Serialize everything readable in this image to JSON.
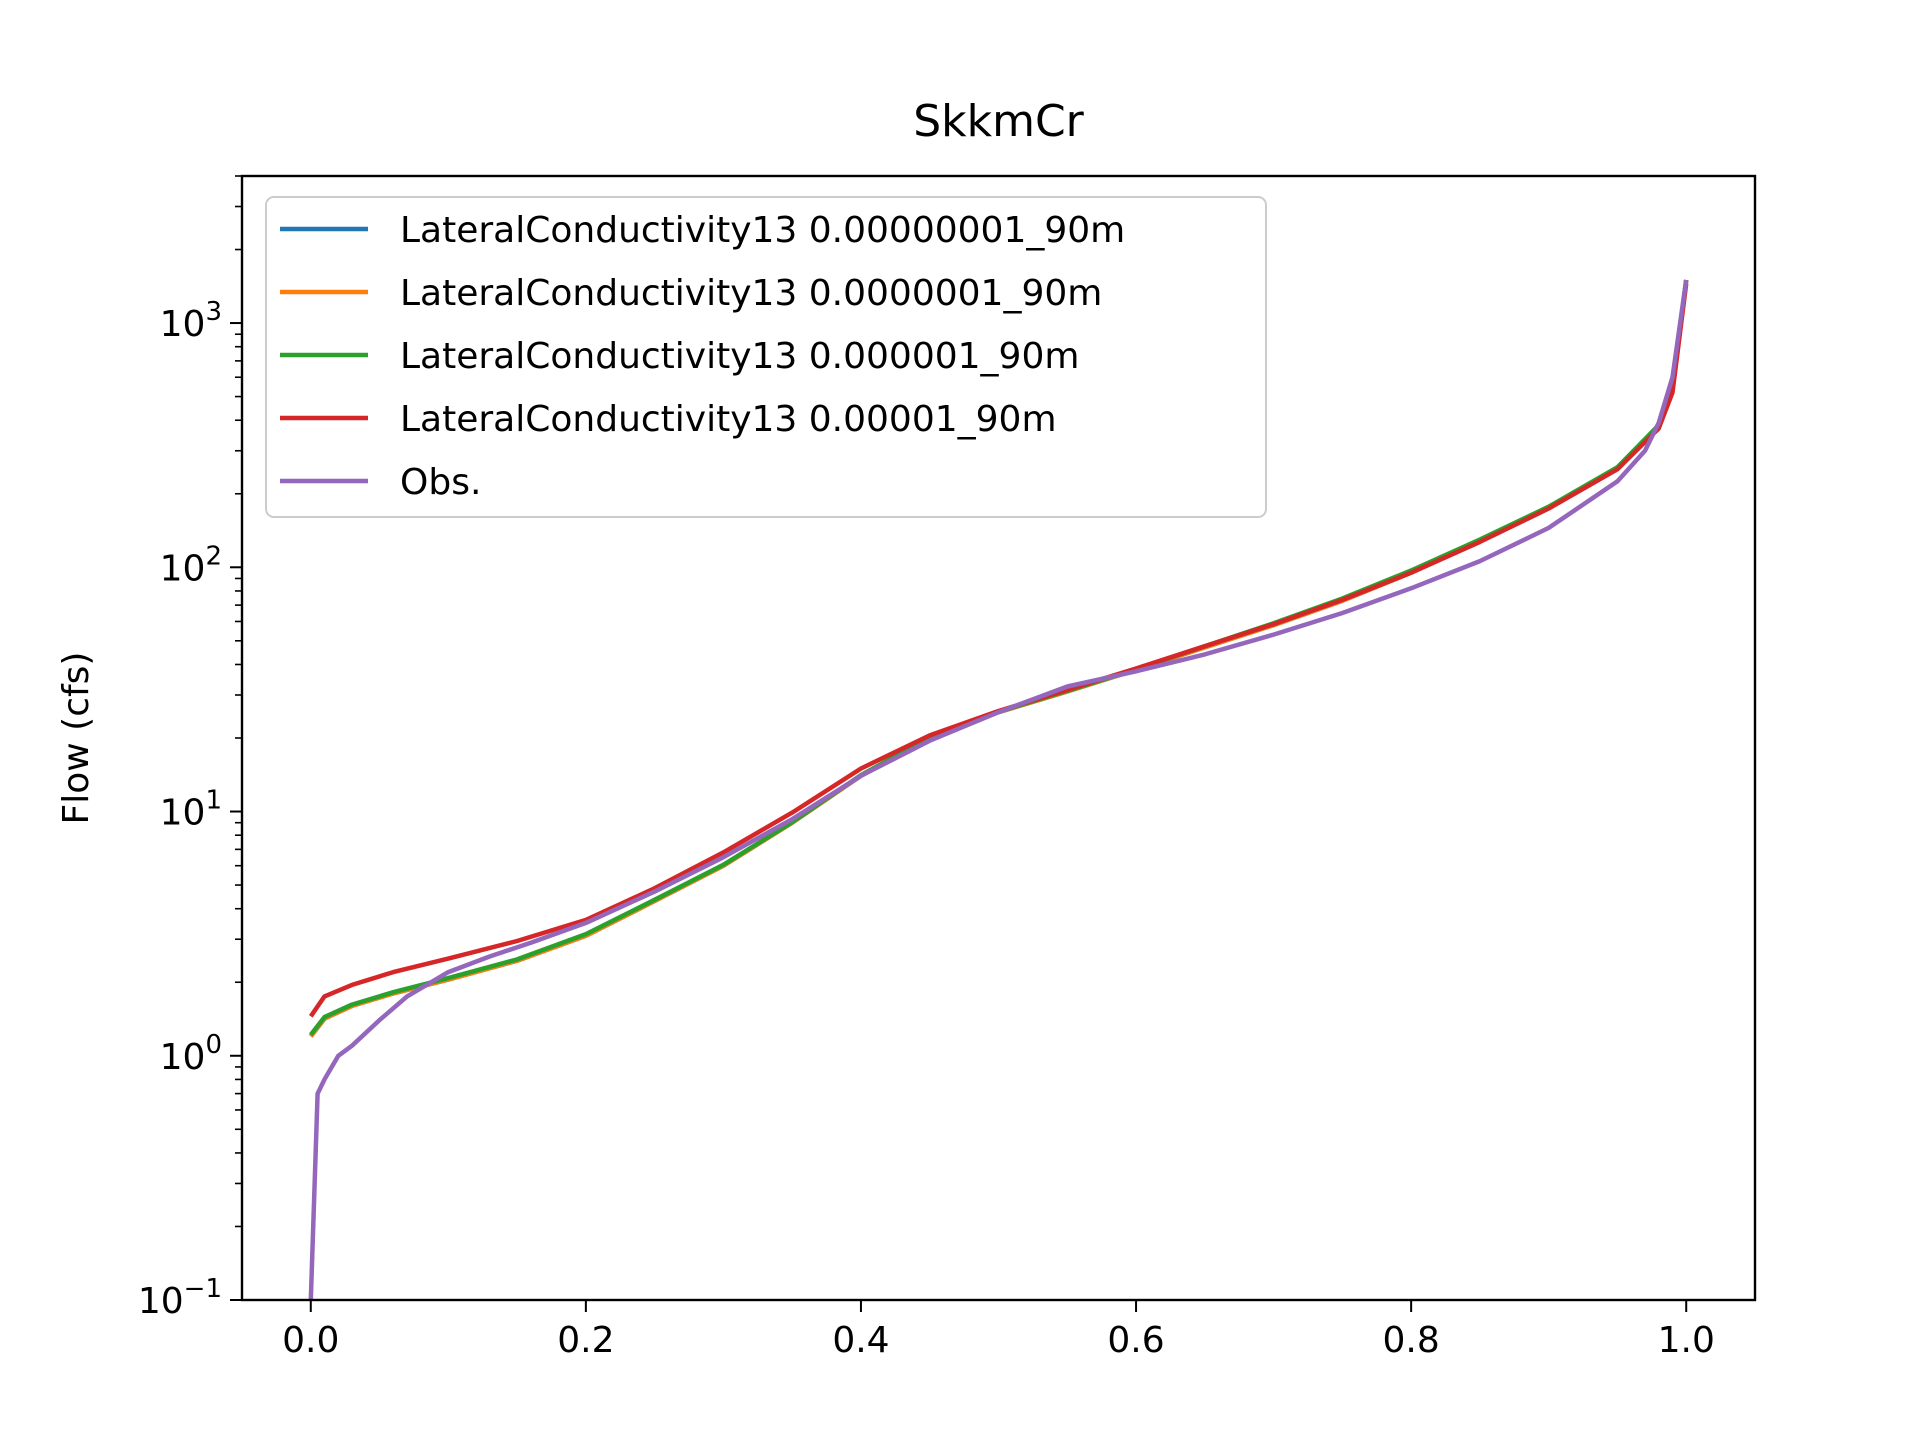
{
  "chart_data": {
    "type": "line",
    "title": "SkkmCr",
    "xlabel": "",
    "ylabel": "Flow (cfs)",
    "yscale": "log",
    "xlim": [
      -0.05,
      1.05
    ],
    "ylim": [
      0.1,
      4000
    ],
    "x_ticks": [
      0.0,
      0.2,
      0.4,
      0.6,
      0.8,
      1.0
    ],
    "x_tick_labels": [
      "0.0",
      "0.2",
      "0.4",
      "0.6",
      "0.8",
      "1.0"
    ],
    "y_ticks": [
      0.1,
      1,
      10,
      100,
      1000
    ],
    "y_tick_labels": [
      {
        "base": "10",
        "exp": "−1"
      },
      {
        "base": "10",
        "exp": "0"
      },
      {
        "base": "10",
        "exp": "1"
      },
      {
        "base": "10",
        "exp": "2"
      },
      {
        "base": "10",
        "exp": "3"
      }
    ],
    "grid": false,
    "legend_position": "upper-left",
    "series": [
      {
        "name": "LateralConductivity13 0.00000001_90m",
        "color": "#1f77b4",
        "points": [
          [
            0.0,
            1.2
          ],
          [
            0.01,
            1.42
          ],
          [
            0.03,
            1.6
          ],
          [
            0.06,
            1.8
          ],
          [
            0.1,
            2.05
          ],
          [
            0.15,
            2.45
          ],
          [
            0.2,
            3.1
          ],
          [
            0.25,
            4.3
          ],
          [
            0.3,
            6.0
          ],
          [
            0.35,
            9.0
          ],
          [
            0.4,
            14.0
          ],
          [
            0.45,
            20.0
          ],
          [
            0.5,
            25.5
          ],
          [
            0.55,
            31.0
          ],
          [
            0.6,
            38.0
          ],
          [
            0.65,
            47.0
          ],
          [
            0.7,
            58.0
          ],
          [
            0.75,
            73.0
          ],
          [
            0.8,
            95.0
          ],
          [
            0.85,
            128.0
          ],
          [
            0.9,
            175.0
          ],
          [
            0.95,
            255.0
          ],
          [
            0.98,
            380.0
          ],
          [
            0.99,
            540.0
          ],
          [
            1.0,
            1500.0
          ]
        ]
      },
      {
        "name": "LateralConductivity13 0.0000001_90m",
        "color": "#ff7f0e",
        "points": [
          [
            0.0,
            1.2
          ],
          [
            0.01,
            1.42
          ],
          [
            0.03,
            1.6
          ],
          [
            0.06,
            1.8
          ],
          [
            0.1,
            2.05
          ],
          [
            0.15,
            2.45
          ],
          [
            0.2,
            3.1
          ],
          [
            0.25,
            4.3
          ],
          [
            0.3,
            6.0
          ],
          [
            0.35,
            9.0
          ],
          [
            0.4,
            14.0
          ],
          [
            0.45,
            20.0
          ],
          [
            0.5,
            25.5
          ],
          [
            0.55,
            31.0
          ],
          [
            0.6,
            38.0
          ],
          [
            0.65,
            47.0
          ],
          [
            0.7,
            58.0
          ],
          [
            0.75,
            73.0
          ],
          [
            0.8,
            95.0
          ],
          [
            0.85,
            128.0
          ],
          [
            0.9,
            175.0
          ],
          [
            0.95,
            255.0
          ],
          [
            0.98,
            380.0
          ],
          [
            0.99,
            540.0
          ],
          [
            1.0,
            1500.0
          ]
        ]
      },
      {
        "name": "LateralConductivity13 0.000001_90m",
        "color": "#2ca02c",
        "points": [
          [
            0.0,
            1.22
          ],
          [
            0.01,
            1.44
          ],
          [
            0.03,
            1.62
          ],
          [
            0.06,
            1.82
          ],
          [
            0.1,
            2.08
          ],
          [
            0.15,
            2.48
          ],
          [
            0.2,
            3.15
          ],
          [
            0.25,
            4.35
          ],
          [
            0.3,
            6.05
          ],
          [
            0.35,
            9.05
          ],
          [
            0.4,
            14.1
          ],
          [
            0.45,
            20.1
          ],
          [
            0.5,
            25.6
          ],
          [
            0.55,
            31.2
          ],
          [
            0.6,
            38.2
          ],
          [
            0.65,
            47.5
          ],
          [
            0.7,
            59.0
          ],
          [
            0.75,
            74.5
          ],
          [
            0.8,
            97.0
          ],
          [
            0.85,
            130.0
          ],
          [
            0.9,
            177.0
          ],
          [
            0.95,
            257.0
          ],
          [
            0.98,
            382.0
          ],
          [
            0.99,
            545.0
          ],
          [
            1.0,
            1500.0
          ]
        ]
      },
      {
        "name": "LateralConductivity13 0.00001_90m",
        "color": "#d62728",
        "points": [
          [
            0.0,
            1.45
          ],
          [
            0.01,
            1.75
          ],
          [
            0.03,
            1.95
          ],
          [
            0.06,
            2.2
          ],
          [
            0.1,
            2.5
          ],
          [
            0.15,
            2.95
          ],
          [
            0.2,
            3.6
          ],
          [
            0.25,
            4.85
          ],
          [
            0.3,
            6.8
          ],
          [
            0.35,
            9.9
          ],
          [
            0.4,
            15.0
          ],
          [
            0.45,
            20.5
          ],
          [
            0.5,
            25.8
          ],
          [
            0.55,
            31.5
          ],
          [
            0.6,
            38.5
          ],
          [
            0.65,
            47.5
          ],
          [
            0.7,
            58.5
          ],
          [
            0.75,
            73.5
          ],
          [
            0.8,
            95.0
          ],
          [
            0.85,
            127.0
          ],
          [
            0.9,
            174.0
          ],
          [
            0.95,
            252.0
          ],
          [
            0.98,
            370.0
          ],
          [
            0.99,
            520.0
          ],
          [
            1.0,
            1450.0
          ]
        ]
      },
      {
        "name": "Obs.",
        "color": "#9467bd",
        "points": [
          [
            0.0,
            0.1
          ],
          [
            0.005,
            0.7
          ],
          [
            0.01,
            0.8
          ],
          [
            0.02,
            1.0
          ],
          [
            0.03,
            1.1
          ],
          [
            0.05,
            1.4
          ],
          [
            0.07,
            1.75
          ],
          [
            0.1,
            2.2
          ],
          [
            0.13,
            2.55
          ],
          [
            0.16,
            2.9
          ],
          [
            0.2,
            3.5
          ],
          [
            0.25,
            4.7
          ],
          [
            0.3,
            6.5
          ],
          [
            0.35,
            9.3
          ],
          [
            0.4,
            14.0
          ],
          [
            0.45,
            19.5
          ],
          [
            0.5,
            25.5
          ],
          [
            0.55,
            32.5
          ],
          [
            0.6,
            37.5
          ],
          [
            0.65,
            44.0
          ],
          [
            0.7,
            53.0
          ],
          [
            0.75,
            65.0
          ],
          [
            0.8,
            82.0
          ],
          [
            0.85,
            106.0
          ],
          [
            0.9,
            145.0
          ],
          [
            0.95,
            225.0
          ],
          [
            0.97,
            300.0
          ],
          [
            0.98,
            390.0
          ],
          [
            0.99,
            600.0
          ],
          [
            1.0,
            1500.0
          ]
        ]
      }
    ]
  }
}
